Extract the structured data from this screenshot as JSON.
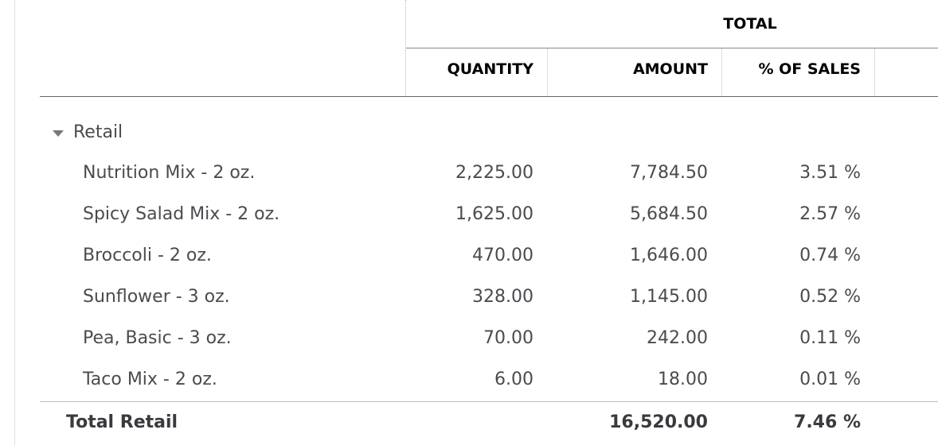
{
  "header": {
    "title": "TOTAL",
    "columns": [
      "QUANTITY",
      "AMOUNT",
      "% OF SALES"
    ]
  },
  "group": {
    "label": "Retail",
    "rows": [
      {
        "name": "Nutrition Mix - 2 oz.",
        "quantity": "2,225.00",
        "amount": "7,784.50",
        "percent": "3.51 %"
      },
      {
        "name": "Spicy Salad Mix - 2 oz.",
        "quantity": "1,625.00",
        "amount": "5,684.50",
        "percent": "2.57 %"
      },
      {
        "name": "Broccoli - 2 oz.",
        "quantity": "470.00",
        "amount": "1,646.00",
        "percent": "0.74 %"
      },
      {
        "name": "Sunflower - 3 oz.",
        "quantity": "328.00",
        "amount": "1,145.00",
        "percent": "0.52 %"
      },
      {
        "name": "Pea, Basic - 3 oz.",
        "quantity": "70.00",
        "amount": "242.00",
        "percent": "0.11 %"
      },
      {
        "name": "Taco Mix - 2 oz.",
        "quantity": "6.00",
        "amount": "18.00",
        "percent": "0.01 %"
      }
    ],
    "total": {
      "label": "Total Retail",
      "amount": "16,520.00",
      "percent": "7.46 %"
    }
  }
}
